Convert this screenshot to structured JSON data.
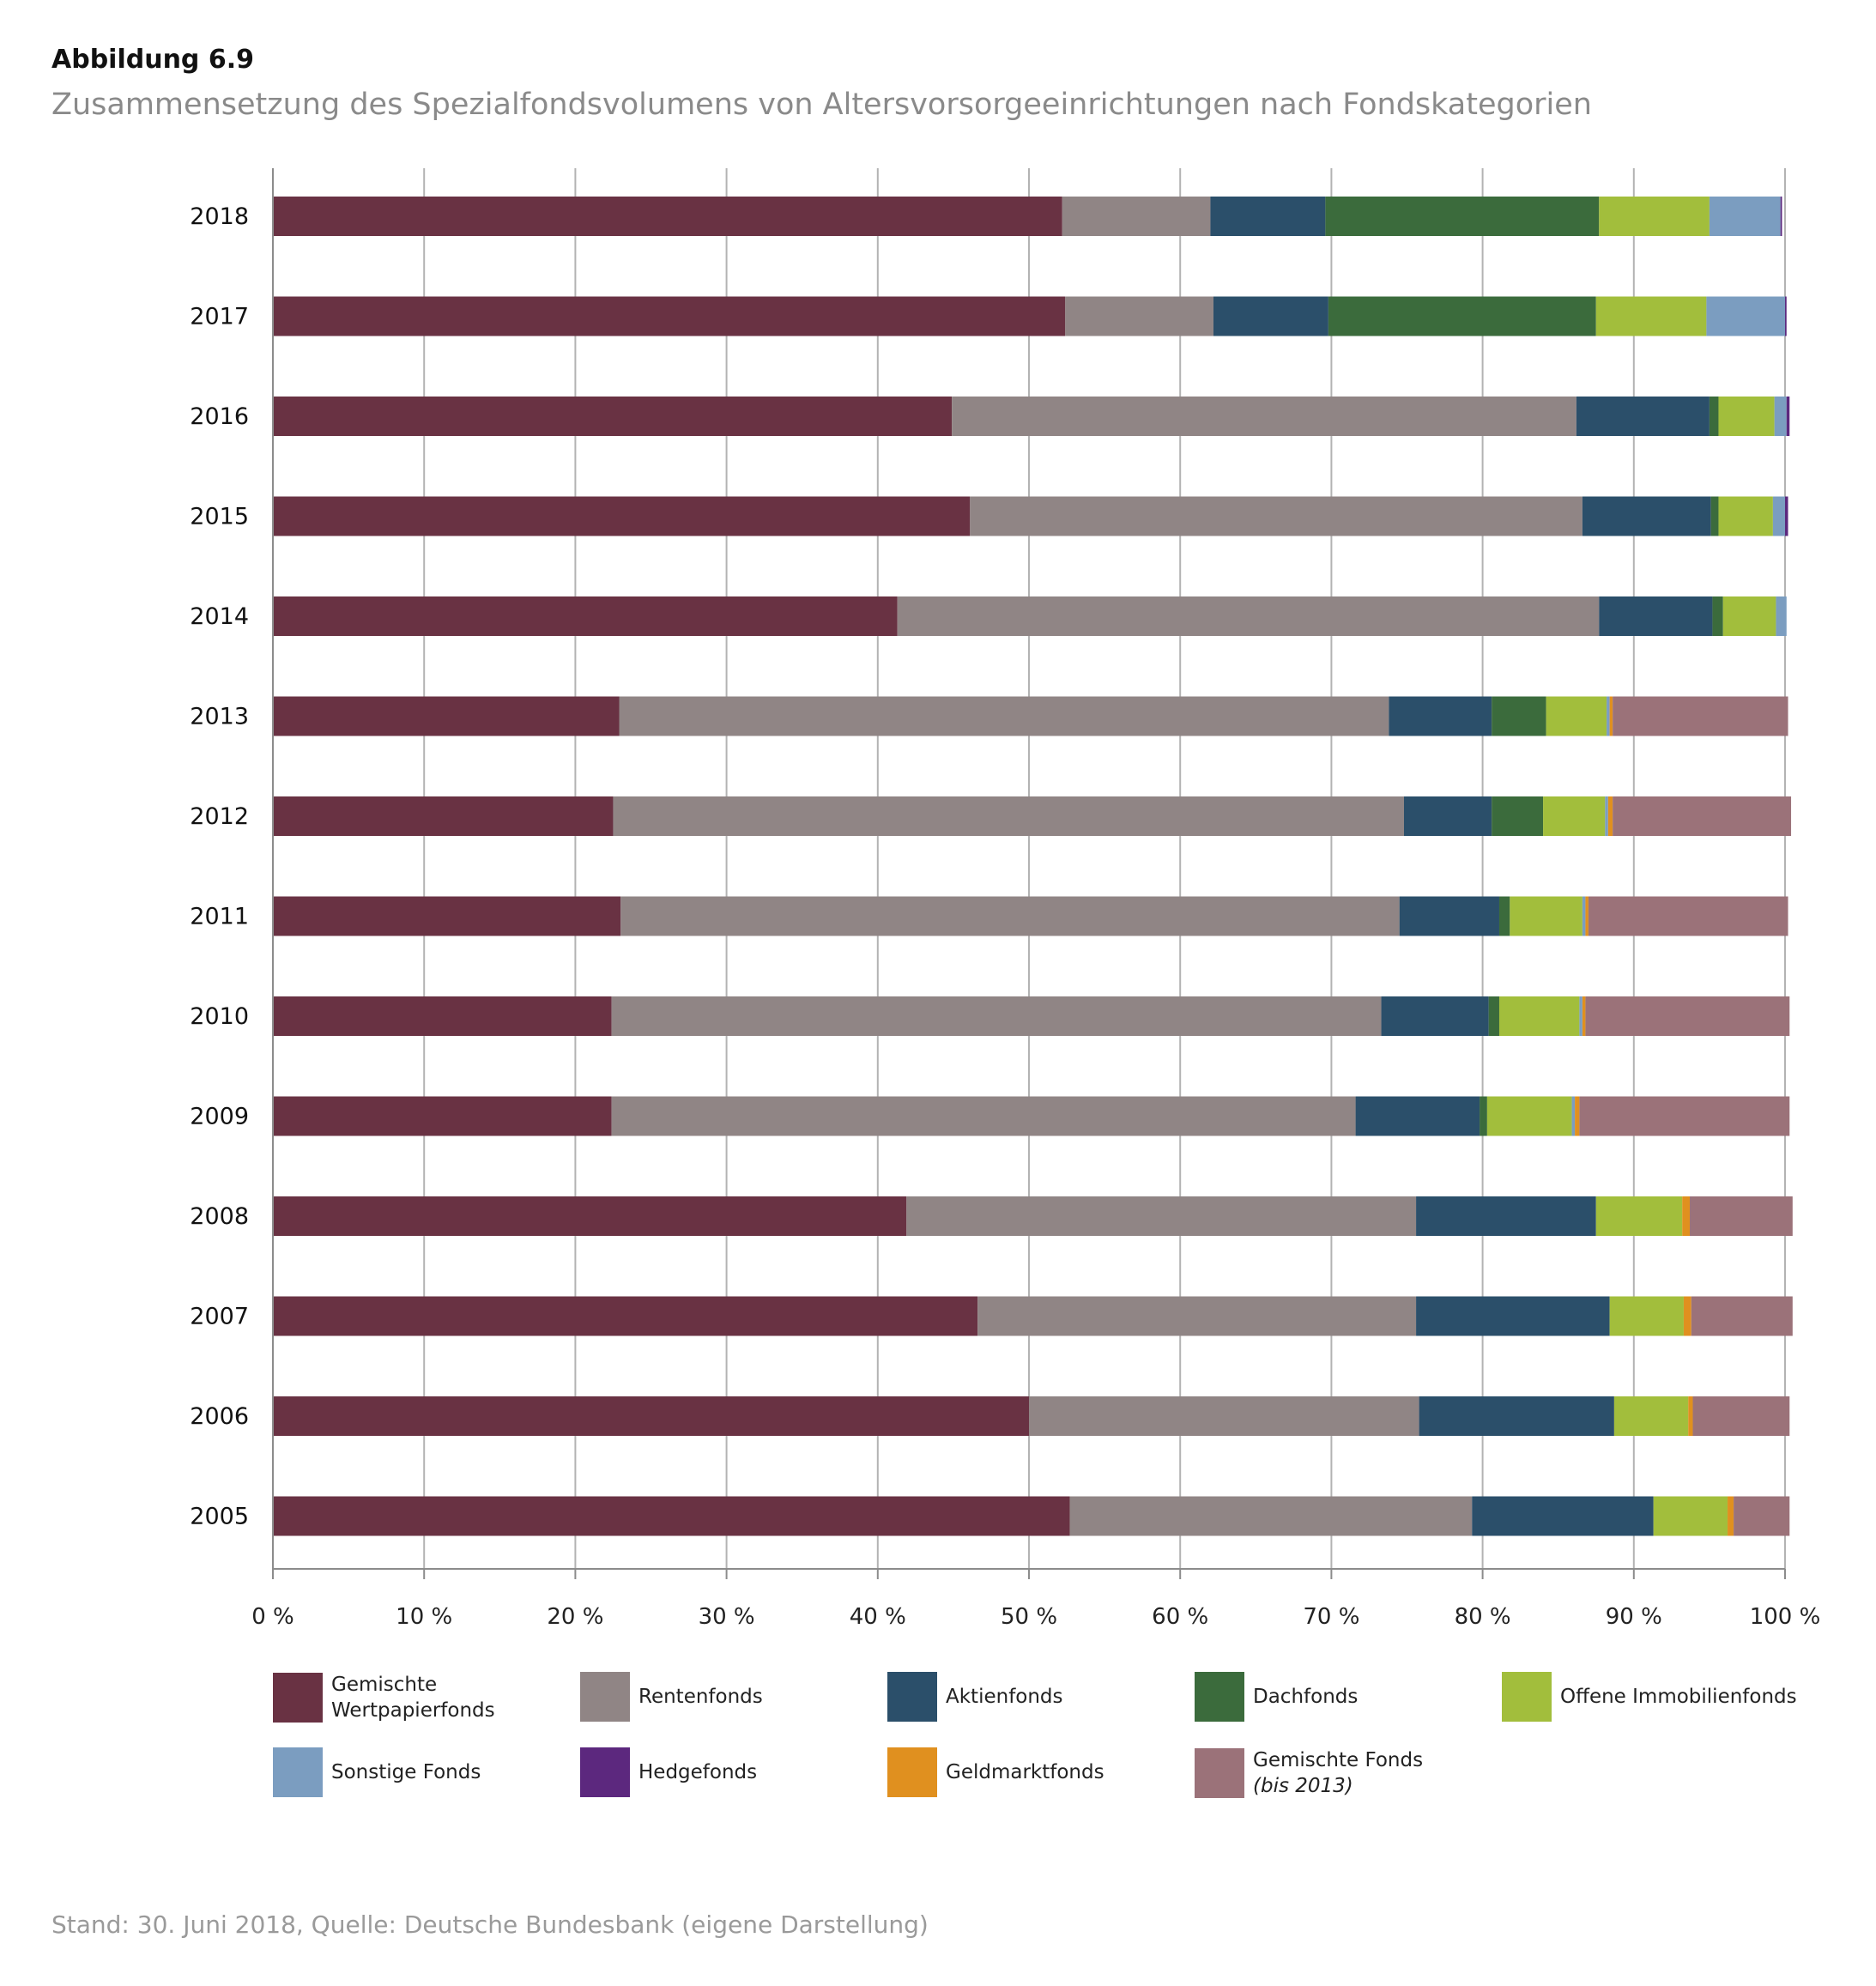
{
  "figure": {
    "label": "Abbildung 6.9",
    "title": "Zusammensetzung des Spezialfondsvolumens von Altersvorsorgeeinrichtungen nach Fondskategorien",
    "source": "Stand: 30. Juni 2018, Quelle: Deutsche Bundesbank (eigene Darstellung)"
  },
  "chart_data": {
    "type": "bar",
    "orientation": "horizontal",
    "stacked": true,
    "xlim": [
      0,
      100
    ],
    "x_ticks": [
      "0 %",
      "10 %",
      "20 %",
      "30 %",
      "40 %",
      "50 %",
      "60 %",
      "70 %",
      "80 %",
      "90 %",
      "100 %"
    ],
    "grid": "vertical",
    "legend_position": "bottom",
    "categories": [
      "2018",
      "2017",
      "2016",
      "2015",
      "2014",
      "2013",
      "2012",
      "2011",
      "2010",
      "2009",
      "2008",
      "2007",
      "2006",
      "2005"
    ],
    "series": [
      {
        "name": "Gemischte Wertpapierfonds",
        "color": "#693243",
        "values": [
          52.2,
          52.4,
          44.9,
          46.1,
          41.3,
          22.9,
          22.5,
          23.0,
          22.4,
          22.4,
          41.9,
          46.6,
          50.0,
          52.7
        ]
      },
      {
        "name": "Rentenfonds",
        "color": "#908585",
        "values": [
          9.8,
          9.8,
          41.3,
          40.5,
          46.4,
          50.9,
          52.3,
          51.5,
          50.9,
          49.2,
          33.7,
          29.0,
          25.8,
          26.6
        ]
      },
      {
        "name": "Aktienfonds",
        "color": "#2b4f6a",
        "values": [
          7.6,
          7.6,
          8.8,
          8.5,
          7.5,
          6.8,
          5.8,
          6.6,
          7.1,
          8.2,
          11.9,
          12.8,
          12.9,
          12.0
        ]
      },
      {
        "name": "Dachfonds",
        "color": "#3b6b3c",
        "values": [
          18.1,
          17.7,
          0.6,
          0.5,
          0.7,
          3.6,
          3.4,
          0.7,
          0.7,
          0.5,
          0.0,
          0.0,
          0.0,
          0.0
        ]
      },
      {
        "name": "Offene Immobilienfonds",
        "color": "#a2be3c",
        "values": [
          7.3,
          7.3,
          3.7,
          3.6,
          3.5,
          4.0,
          4.1,
          4.8,
          5.3,
          5.6,
          5.7,
          4.9,
          4.9,
          4.9
        ]
      },
      {
        "name": "Sonstige Fonds",
        "color": "#7b9dc0",
        "values": [
          4.7,
          5.2,
          0.8,
          0.8,
          0.7,
          0.2,
          0.2,
          0.2,
          0.2,
          0.2,
          0.0,
          0.0,
          0.0,
          0.0
        ]
      },
      {
        "name": "Hedgefonds",
        "color": "#5c287e",
        "values": [
          0.1,
          0.1,
          0.2,
          0.2,
          0.0,
          0.0,
          0.0,
          0.0,
          0.0,
          0.0,
          0.0,
          0.0,
          0.0,
          0.0
        ]
      },
      {
        "name": "Geldmarktfonds",
        "color": "#e0901f",
        "values": [
          0.0,
          0.0,
          0.0,
          0.0,
          0.0,
          0.2,
          0.3,
          0.2,
          0.2,
          0.3,
          0.5,
          0.5,
          0.3,
          0.4
        ]
      },
      {
        "name": "Gemischte Fonds (bis 2013)",
        "color": "#9b7279",
        "values": [
          0.0,
          0.0,
          0.0,
          0.0,
          0.0,
          11.6,
          11.8,
          13.2,
          13.5,
          13.9,
          6.8,
          6.7,
          6.4,
          3.7
        ]
      }
    ]
  },
  "legend": [
    {
      "label": "Gemischte Wertpapierfonds",
      "lines": [
        "Gemischte",
        "Wertpapierfonds"
      ],
      "color": "#693243"
    },
    {
      "label": "Rentenfonds",
      "lines": [
        "Rentenfonds"
      ],
      "color": "#908585"
    },
    {
      "label": "Aktienfonds",
      "lines": [
        "Aktienfonds"
      ],
      "color": "#2b4f6a"
    },
    {
      "label": "Dachfonds",
      "lines": [
        "Dachfonds"
      ],
      "color": "#3b6b3c"
    },
    {
      "label": "Offene Immobilienfonds",
      "lines": [
        "Offene Immobilienfonds"
      ],
      "color": "#a2be3c"
    },
    {
      "label": "Sonstige Fonds",
      "lines": [
        "Sonstige Fonds"
      ],
      "color": "#7b9dc0"
    },
    {
      "label": "Hedgefonds",
      "lines": [
        "Hedgefonds"
      ],
      "color": "#5c287e"
    },
    {
      "label": "Geldmarktfonds",
      "lines": [
        "Geldmarktfonds"
      ],
      "color": "#e0901f"
    },
    {
      "label": "Gemischte Fonds (bis 2013)",
      "lines": [
        "Gemischte Fonds"
      ],
      "note": "(bis 2013)",
      "color": "#9b7279"
    }
  ]
}
